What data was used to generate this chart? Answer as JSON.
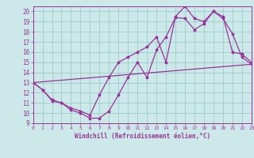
{
  "xlabel": "Windchill (Refroidissement éolien,°C)",
  "bg_color": "#cce8e8",
  "grid_color": "#99cccc",
  "line_color": "#993399",
  "xlim": [
    0,
    23
  ],
  "ylim": [
    9,
    20.5
  ],
  "yticks": [
    9,
    10,
    11,
    12,
    13,
    14,
    15,
    16,
    17,
    18,
    19,
    20
  ],
  "xticks": [
    0,
    1,
    2,
    3,
    4,
    5,
    6,
    7,
    8,
    9,
    10,
    11,
    12,
    13,
    14,
    15,
    16,
    17,
    18,
    19,
    20,
    21,
    22,
    23
  ],
  "curve1_x": [
    0,
    1,
    2,
    3,
    4,
    5,
    6,
    7,
    8,
    9,
    10,
    11,
    12,
    13,
    14,
    15,
    16,
    17,
    18,
    19,
    20,
    21,
    22,
    23
  ],
  "curve1_y": [
    13.0,
    12.3,
    11.2,
    11.0,
    10.3,
    10.0,
    9.5,
    9.5,
    10.2,
    11.8,
    13.5,
    15.0,
    13.5,
    16.2,
    17.5,
    19.4,
    19.3,
    18.2,
    18.8,
    20.0,
    19.3,
    17.8,
    15.5,
    14.8
  ],
  "curve2_x": [
    0,
    1,
    2,
    3,
    4,
    5,
    6,
    7,
    8,
    9,
    10,
    11,
    12,
    13,
    14,
    15,
    16,
    17,
    18,
    19,
    20,
    21,
    22,
    23
  ],
  "curve2_y": [
    13.0,
    12.3,
    11.3,
    11.0,
    10.5,
    10.2,
    9.8,
    11.8,
    13.5,
    15.0,
    15.5,
    16.0,
    16.5,
    17.5,
    15.0,
    19.5,
    20.5,
    19.3,
    19.0,
    20.0,
    19.5,
    16.0,
    15.8,
    15.0
  ],
  "curve3_x": [
    0,
    23
  ],
  "curve3_y": [
    13.0,
    14.8
  ]
}
